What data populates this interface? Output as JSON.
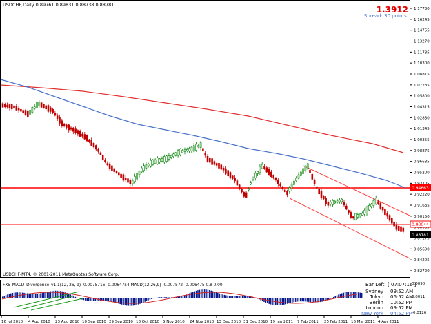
{
  "header": {
    "symbol_info": "USDCHF,Daily  0.89761 0.89831 0.88738 0.88781",
    "big_value": "1.3912",
    "spread": "Spread: 30 points."
  },
  "price_axis": {
    "ticks": [
      "1.17730",
      "1.16245",
      "1.14755",
      "1.13270",
      "1.11785",
      "1.10300",
      "1.08815",
      "1.07285",
      "1.05800",
      "1.04315",
      "1.02830",
      "1.01345",
      "1.00355",
      "0.98875",
      "0.96685",
      "0.95200",
      "0.93705",
      "0.92220",
      "0.91635",
      "0.90150",
      "0.88665",
      "0.87175",
      "0.85690",
      "0.84205",
      "0.82720"
    ],
    "ylim": [
      0.8272,
      1.1773
    ]
  },
  "price_labels": {
    "upper_hline": "0.94663",
    "lower_hline": "0.90044",
    "current": "0.88781"
  },
  "date_axis": [
    "16 Jul 2010",
    "4 Aug 2010",
    "23 Aug 2010",
    "10 Sep 2010",
    "29 Sep 2010",
    "18 Oct 2010",
    "5 Nov 2010",
    "24 Nov 2010",
    "13 Dec 2010",
    "31 Dec 2010",
    "19 Jan 2011",
    "7 Feb 2011",
    "25 Feb 2011",
    "16 Mar 2011",
    "4 Apr 2011"
  ],
  "watermark": "USDCHF-MT4, © 2001-2011 MetaQuotes Software Corp.",
  "sub_window": {
    "title": "FX5_MACD_Divergence_v1.1(12, 26, 9) -0.0075716 -0.0064754  MACD(12,26,9) -0.007572 -0.006475  0.8  0.00",
    "ticks": [
      "0.0090",
      "0.0011",
      "-0.0126"
    ]
  },
  "clock": {
    "bar_left_label": "Bar Left",
    "bar_left_value": "[ 07:07:16 ]",
    "cities": [
      {
        "city": "Sydney",
        "time": "09:52 AM"
      },
      {
        "city": "Tokyo",
        "time": "06:52 AM"
      },
      {
        "city": "Berlin",
        "time": "10:52 PM"
      },
      {
        "city": "London",
        "time": "09:52 PM"
      },
      {
        "city": "New York",
        "time": "04:52 PM"
      }
    ]
  },
  "colors": {
    "bull": "#008000",
    "bear": "#c00000",
    "ma_red": "#e03030",
    "ma_blue": "#4a72c8",
    "hline": "#ff0000",
    "channel": "#ff4040",
    "header_value": "#e00000",
    "spread": "#4a72c8",
    "ny_time": "#4a72c8"
  }
}
